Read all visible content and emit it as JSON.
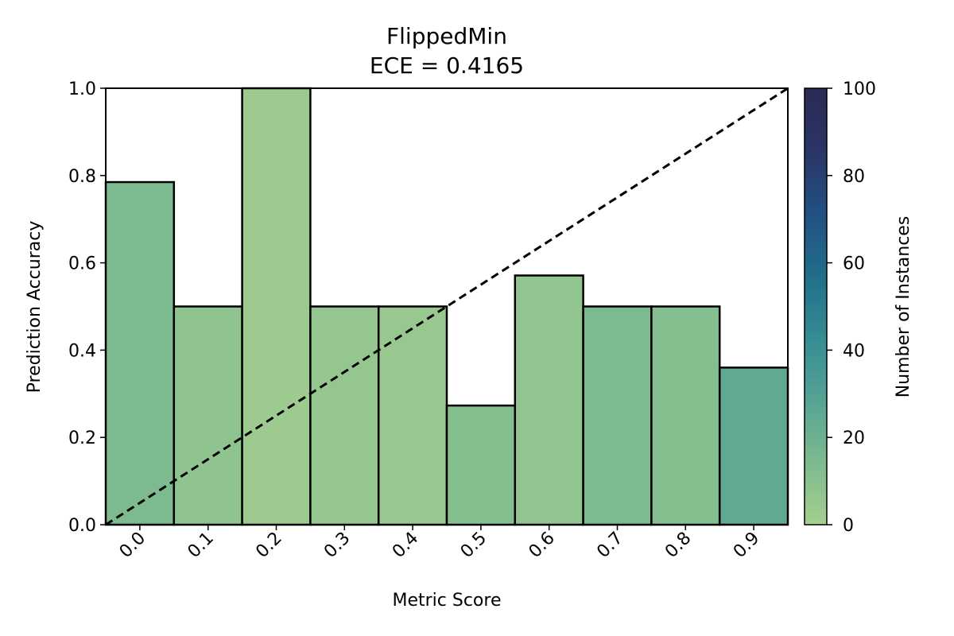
{
  "chart_data": {
    "type": "bar",
    "title": "FlippedMin",
    "subtitle": "ECE = 0.4165",
    "xlabel": "Metric Score",
    "ylabel": "Prediction Accuracy",
    "categories": [
      "0.0",
      "0.1",
      "0.2",
      "0.3",
      "0.4",
      "0.5",
      "0.6",
      "0.7",
      "0.8",
      "0.9"
    ],
    "values": [
      0.785,
      0.5,
      1.0,
      0.5,
      0.5,
      0.273,
      0.571,
      0.5,
      0.5,
      0.36
    ],
    "instance_counts": [
      14,
      8,
      3,
      6,
      5,
      11,
      7,
      14,
      11,
      25
    ],
    "ylim": [
      0,
      1.0
    ],
    "yticks": [
      "0.0",
      "0.2",
      "0.4",
      "0.6",
      "0.8",
      "1.0"
    ],
    "reference_line": {
      "style": "dashed",
      "from": [
        0,
        0
      ],
      "to": [
        1,
        1
      ]
    },
    "grid": false,
    "colorbar": {
      "label": "Number of Instances",
      "range": [
        0,
        100
      ],
      "ticks": [
        "0",
        "20",
        "40",
        "60",
        "80",
        "100"
      ],
      "colors": [
        "#a6cf8f",
        "#7dba8f",
        "#56a394",
        "#358c93",
        "#216e8a",
        "#225082",
        "#2a3566",
        "#2b2a54"
      ]
    },
    "bar_edge_color": "#000000"
  }
}
